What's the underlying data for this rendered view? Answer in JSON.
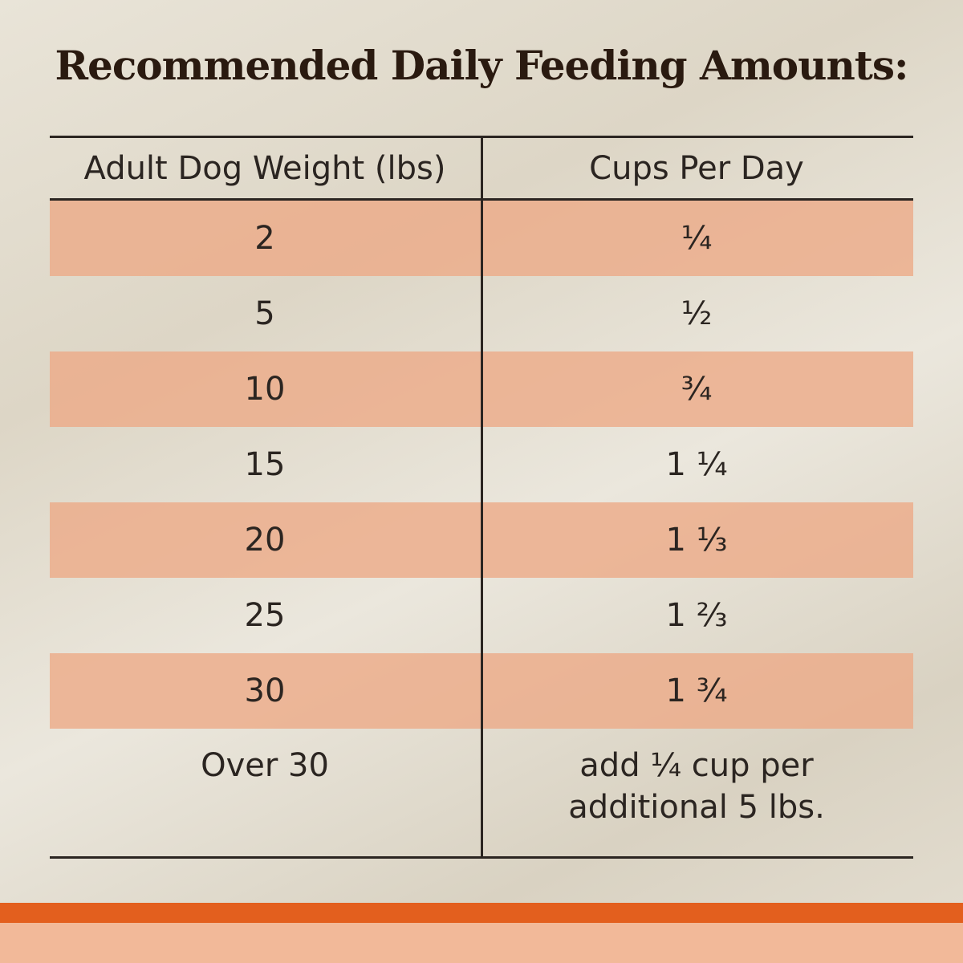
{
  "header": {
    "title": "Recommended Daily Feeding Amounts:"
  },
  "table": {
    "columns": [
      "Adult Dog Weight (lbs)",
      "Cups Per Day"
    ],
    "rows": [
      [
        "2",
        "¼"
      ],
      [
        "5",
        "½"
      ],
      [
        "10",
        "¾"
      ],
      [
        "15",
        "1 ¼"
      ],
      [
        "20",
        "1 ⅓"
      ],
      [
        "25",
        "1 ⅔"
      ],
      [
        "30",
        "1 ¾"
      ],
      [
        "Over 30",
        "add ¼ cup per additional 5 lbs."
      ]
    ]
  }
}
